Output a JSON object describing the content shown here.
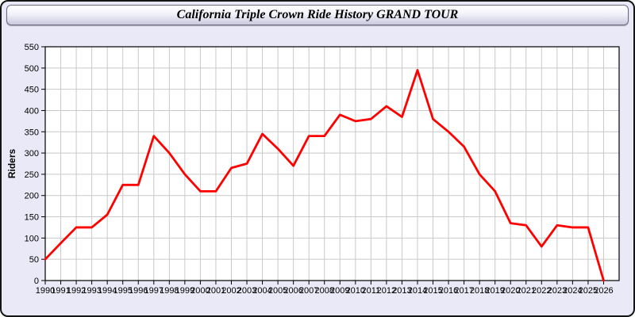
{
  "header": {
    "title": "California Triple Crown Ride History GRAND TOUR"
  },
  "chart_data": {
    "type": "line",
    "title": "California Triple Crown Ride History GRAND TOUR",
    "xlabel": "",
    "ylabel": "Riders",
    "ylim": [
      0,
      550
    ],
    "ytick_step": 50,
    "grid": true,
    "legend_position": "none",
    "categories": [
      "1990",
      "1991",
      "1992",
      "1993",
      "1994",
      "1995",
      "1996",
      "1997",
      "1998",
      "1999",
      "2000",
      "2001",
      "2002",
      "2003",
      "2004",
      "2005",
      "2006",
      "2007",
      "2008",
      "2009",
      "2010",
      "2011",
      "2012",
      "2013",
      "2014",
      "2015",
      "2016",
      "2017",
      "2018",
      "2019",
      "2020",
      "2021",
      "2022",
      "2023",
      "2024",
      "2025",
      "2026"
    ],
    "series": [
      {
        "name": "Riders",
        "values": [
          50,
          88,
          125,
          125,
          155,
          225,
          225,
          340,
          300,
          250,
          210,
          210,
          265,
          275,
          345,
          310,
          270,
          340,
          340,
          390,
          375,
          380,
          410,
          385,
          495,
          380,
          350,
          315,
          250,
          210,
          135,
          130,
          80,
          130,
          125,
          125,
          0
        ]
      }
    ],
    "colors": {
      "line": "#ff0000",
      "grid": "#c9c9c9",
      "plot_bg": "#ffffff",
      "plot_border": "#000000",
      "tick_label": "#000000",
      "axis_label": "#000000",
      "page_bg": "#e9e9f7"
    }
  }
}
